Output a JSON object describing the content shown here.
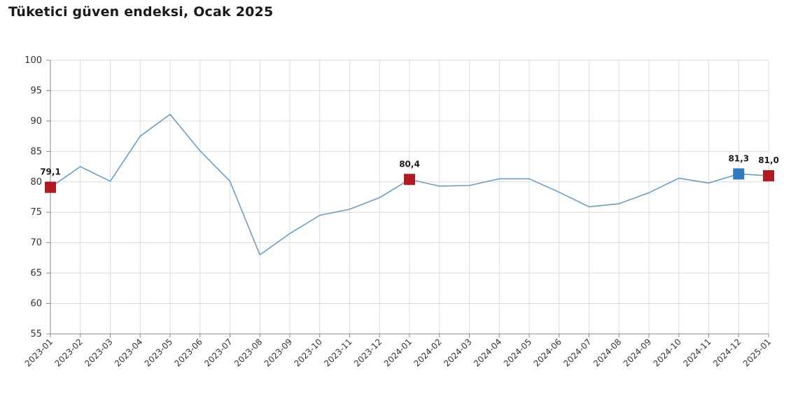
{
  "chart_data": {
    "type": "line",
    "title": "Tüketici güven endeksi, Ocak 2025",
    "xlabel": "",
    "ylabel": "",
    "ylim": [
      55,
      100
    ],
    "yticks": [
      "55",
      "60",
      "65",
      "70",
      "75",
      "80",
      "85",
      "90",
      "95",
      "100"
    ],
    "grid": true,
    "legend": "none",
    "line_color": "#6a9ec4",
    "marker_red": "#b01c22",
    "marker_blue": "#2f7bbf",
    "x": [
      "2023-01",
      "2023-02",
      "2023-03",
      "2023-04",
      "2023-05",
      "2023-06",
      "2023-07",
      "2023-08",
      "2023-09",
      "2023-10",
      "2023-11",
      "2023-12",
      "2024-01",
      "2024-02",
      "2024-03",
      "2024-04",
      "2024-05",
      "2024-06",
      "2024-07",
      "2024-08",
      "2024-09",
      "2024-10",
      "2024-11",
      "2024-12",
      "2025-01"
    ],
    "series": [
      {
        "values": [
          79.1,
          82.5,
          80.1,
          87.5,
          91.1,
          85.1,
          80.1,
          68.0,
          71.5,
          74.5,
          75.5,
          77.4,
          80.4,
          79.3,
          79.4,
          80.5,
          80.5,
          78.3,
          75.9,
          76.4,
          78.2,
          80.6,
          79.8,
          81.3,
          81.0
        ]
      }
    ],
    "highlights": [
      {
        "index": 0,
        "label": "79,1",
        "color": "red"
      },
      {
        "index": 12,
        "label": "80,4",
        "color": "red"
      },
      {
        "index": 23,
        "label": "81,3",
        "color": "blue"
      },
      {
        "index": 24,
        "label": "81,0",
        "color": "red"
      }
    ]
  }
}
